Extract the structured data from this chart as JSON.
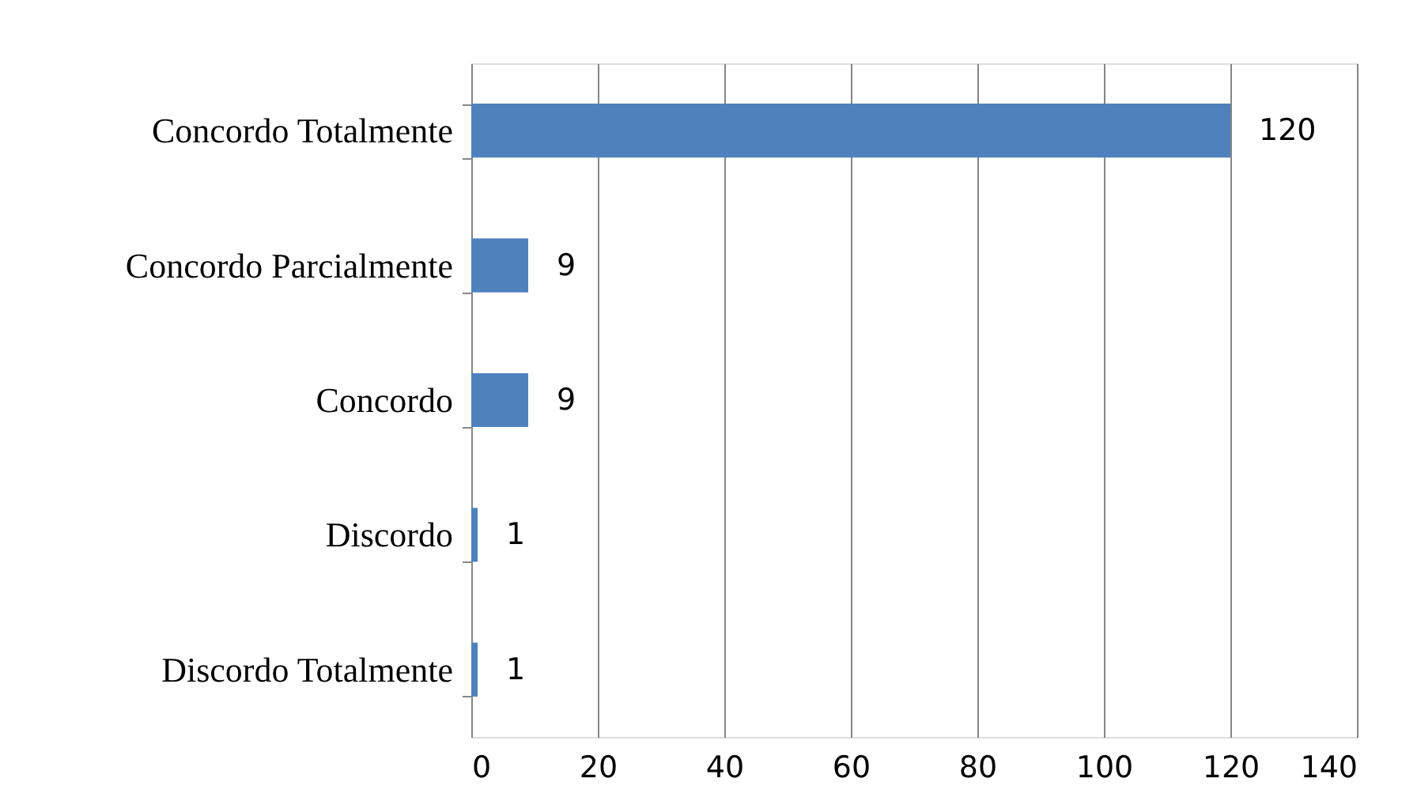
{
  "chart_data": {
    "type": "bar",
    "orientation": "horizontal",
    "categories": [
      "Concordo Totalmente",
      "Concordo Parcialmente",
      "Concordo",
      "Discordo",
      "Discordo Totalmente"
    ],
    "values": [
      120,
      9,
      9,
      1,
      1
    ],
    "color": "#4f81bd",
    "xlim": [
      0,
      140
    ],
    "xticks": [
      0,
      20,
      40,
      60,
      80,
      100,
      120,
      140
    ],
    "grid": "x",
    "data_labels": true
  }
}
